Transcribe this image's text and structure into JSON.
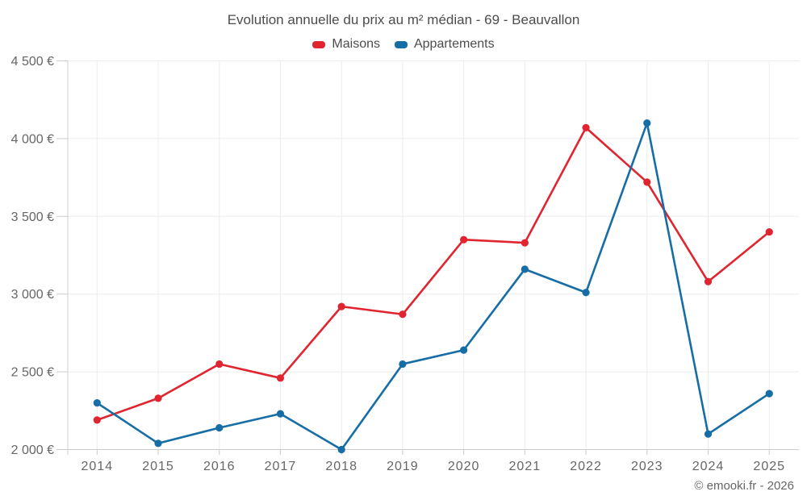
{
  "title": "Evolution annuelle du prix au m² médian - 69 - Beauvallon",
  "legend": [
    {
      "label": "Maisons",
      "color": "#e02530"
    },
    {
      "label": "Appartements",
      "color": "#176da5"
    }
  ],
  "footer": {
    "credit": "© emooki.fr - 2026"
  },
  "chart_data": {
    "type": "line",
    "title": "Evolution annuelle du prix au m² médian - 69 - Beauvallon",
    "categories": [
      "2014",
      "2015",
      "2016",
      "2017",
      "2018",
      "2019",
      "2020",
      "2021",
      "2022",
      "2023",
      "2024",
      "2025"
    ],
    "series": [
      {
        "name": "Maisons",
        "color": "#e02530",
        "values": [
          2190,
          2330,
          2550,
          2460,
          2920,
          2870,
          3350,
          3330,
          4070,
          3720,
          3080,
          3400
        ]
      },
      {
        "name": "Appartements",
        "color": "#176da5",
        "values": [
          2300,
          2040,
          2140,
          2230,
          2000,
          2550,
          2640,
          3160,
          3010,
          4100,
          2100,
          2360
        ]
      }
    ],
    "xlabel": "",
    "ylabel": "",
    "ylim": [
      2000,
      4500
    ],
    "y_tick_step": 500,
    "y_tick_labels": [
      "2 000 €",
      "2 500 €",
      "3 000 €",
      "3 500 €",
      "4 000 €",
      "4 500 €"
    ],
    "currency_suffix": "€",
    "grid": true,
    "legend_position": "top",
    "colors": {
      "gridline": "#ececec",
      "axis": "#cccccc",
      "tick_label": "#666666"
    }
  }
}
